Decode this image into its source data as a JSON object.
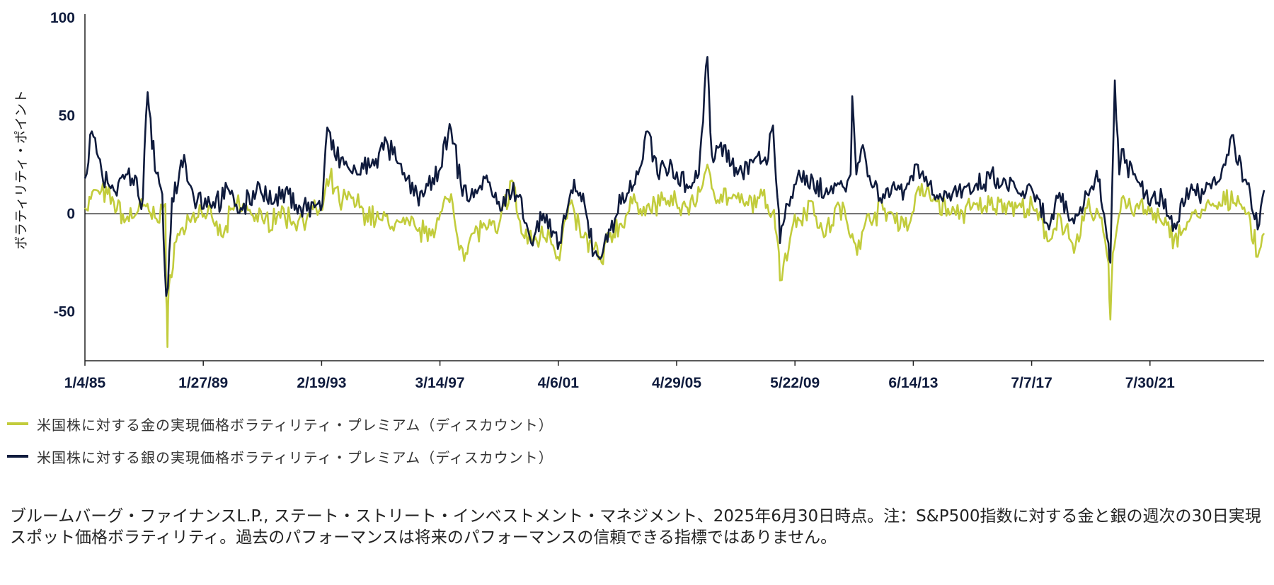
{
  "chart_data": {
    "type": "line",
    "ylabel": "ボラティリティ・ポイント",
    "ylim": [
      -75,
      100
    ],
    "yticks": [
      100,
      50,
      0,
      -50
    ],
    "xticks": [
      "1/4/85",
      "1/27/89",
      "2/19/93",
      "3/14/97",
      "4/6/01",
      "4/29/05",
      "5/22/09",
      "6/14/13",
      "7/7/17",
      "7/30/21"
    ],
    "xrange": [
      "1985-01-04",
      "2025-06-30"
    ],
    "series": [
      {
        "name": "米国株に対する金の実現価格ボラティリティ・プレミアム（ディスカウント）",
        "color": "#c2cc3c",
        "points": [
          [
            "1985-01-04",
            3
          ],
          [
            "1985-06-01",
            12
          ],
          [
            "1986-01-01",
            6
          ],
          [
            "1986-06-01",
            -3
          ],
          [
            "1987-01-01",
            4
          ],
          [
            "1987-06-01",
            -2
          ],
          [
            "1987-10-10",
            5
          ],
          [
            "1987-10-20",
            -42
          ],
          [
            "1987-11-05",
            -68
          ],
          [
            "1987-11-20",
            -38
          ],
          [
            "1988-02-01",
            -15
          ],
          [
            "1988-08-01",
            -3
          ],
          [
            "1989-01-01",
            2
          ],
          [
            "1989-06-01",
            -4
          ],
          [
            "1989-10-01",
            -12
          ],
          [
            "1990-03-01",
            5
          ],
          [
            "1990-09-01",
            2
          ],
          [
            "1991-03-01",
            -5
          ],
          [
            "1991-09-01",
            1
          ],
          [
            "1992-03-01",
            -4
          ],
          [
            "1992-09-01",
            0
          ],
          [
            "1993-03-01",
            2
          ],
          [
            "1993-06-01",
            18
          ],
          [
            "1993-10-01",
            6
          ],
          [
            "1994-03-01",
            8
          ],
          [
            "1994-09-01",
            0
          ],
          [
            "1995-03-01",
            -3
          ],
          [
            "1995-09-01",
            -5
          ],
          [
            "1996-03-01",
            -6
          ],
          [
            "1996-09-01",
            -10
          ],
          [
            "1997-03-01",
            -3
          ],
          [
            "1997-08-01",
            10
          ],
          [
            "1997-10-01",
            -8
          ],
          [
            "1998-02-01",
            -20
          ],
          [
            "1998-05-01",
            -10
          ],
          [
            "1998-10-01",
            -6
          ],
          [
            "1999-03-01",
            -10
          ],
          [
            "1999-09-01",
            17
          ],
          [
            "2000-01-01",
            -10
          ],
          [
            "2000-06-01",
            -14
          ],
          [
            "2000-12-01",
            -8
          ],
          [
            "2001-04-01",
            -22
          ],
          [
            "2001-09-01",
            5
          ],
          [
            "2002-02-01",
            -12
          ],
          [
            "2002-07-01",
            -18
          ],
          [
            "2002-10-01",
            -25
          ],
          [
            "2003-01-01",
            -12
          ],
          [
            "2003-06-01",
            -5
          ],
          [
            "2003-12-01",
            6
          ],
          [
            "2004-06-01",
            2
          ],
          [
            "2004-12-01",
            8
          ],
          [
            "2005-06-01",
            3
          ],
          [
            "2005-12-01",
            5
          ],
          [
            "2006-05-01",
            22
          ],
          [
            "2006-08-01",
            12
          ],
          [
            "2007-03-01",
            8
          ],
          [
            "2007-09-01",
            4
          ],
          [
            "2008-03-01",
            8
          ],
          [
            "2008-09-01",
            2
          ],
          [
            "2008-10-20",
            -15
          ],
          [
            "2008-11-15",
            -34
          ],
          [
            "2009-01-01",
            -25
          ],
          [
            "2009-05-01",
            -5
          ],
          [
            "2010-01-01",
            6
          ],
          [
            "2010-05-20",
            -12
          ],
          [
            "2010-12-01",
            4
          ],
          [
            "2011-08-20",
            -18
          ],
          [
            "2011-12-01",
            0
          ],
          [
            "2012-06-01",
            2
          ],
          [
            "2013-04-20",
            -6
          ],
          [
            "2013-08-01",
            12
          ],
          [
            "2014-03-01",
            8
          ],
          [
            "2014-10-01",
            0
          ],
          [
            "2015-06-01",
            2
          ],
          [
            "2015-12-01",
            4
          ],
          [
            "2016-06-01",
            6
          ],
          [
            "2017-01-01",
            3
          ],
          [
            "2017-08-01",
            2
          ],
          [
            "2018-02-10",
            -14
          ],
          [
            "2018-06-01",
            0
          ],
          [
            "2018-12-20",
            -20
          ],
          [
            "2019-06-01",
            3
          ],
          [
            "2019-12-01",
            -2
          ],
          [
            "2020-02-25",
            -25
          ],
          [
            "2020-03-20",
            -54
          ],
          [
            "2020-04-20",
            -20
          ],
          [
            "2020-08-10",
            8
          ],
          [
            "2020-12-01",
            3
          ],
          [
            "2021-06-01",
            2
          ],
          [
            "2022-01-01",
            -5
          ],
          [
            "2022-06-01",
            -12
          ],
          [
            "2022-12-01",
            -4
          ],
          [
            "2023-06-01",
            2
          ],
          [
            "2024-01-01",
            4
          ],
          [
            "2024-08-05",
            9
          ],
          [
            "2024-12-01",
            0
          ],
          [
            "2025-04-10",
            -22
          ],
          [
            "2025-06-30",
            -10
          ]
        ]
      },
      {
        "name": "米国株に対する銀の実現価格ボラティリティ・プレミアム（ディスカウント）",
        "color": "#0f1b3d",
        "points": [
          [
            "1985-01-04",
            18
          ],
          [
            "1985-04-01",
            42
          ],
          [
            "1985-08-01",
            22
          ],
          [
            "1986-01-01",
            12
          ],
          [
            "1986-06-01",
            20
          ],
          [
            "1987-01-01",
            8
          ],
          [
            "1987-03-01",
            62
          ],
          [
            "1987-06-01",
            22
          ],
          [
            "1987-09-01",
            10
          ],
          [
            "1987-10-20",
            -42
          ],
          [
            "1987-11-10",
            -38
          ],
          [
            "1988-01-01",
            8
          ],
          [
            "1988-06-01",
            30
          ],
          [
            "1988-10-01",
            8
          ],
          [
            "1989-06-01",
            6
          ],
          [
            "1990-01-01",
            10
          ],
          [
            "1990-06-01",
            2
          ],
          [
            "1991-01-01",
            15
          ],
          [
            "1991-06-01",
            5
          ],
          [
            "1992-01-01",
            10
          ],
          [
            "1992-06-01",
            3
          ],
          [
            "1993-03-01",
            5
          ],
          [
            "1993-05-01",
            44
          ],
          [
            "1993-08-01",
            30
          ],
          [
            "1993-12-01",
            25
          ],
          [
            "1994-06-01",
            20
          ],
          [
            "1995-01-01",
            28
          ],
          [
            "1995-06-01",
            35
          ],
          [
            "1995-12-01",
            20
          ],
          [
            "1996-06-01",
            10
          ],
          [
            "1997-01-01",
            15
          ],
          [
            "1997-08-01",
            43
          ],
          [
            "1997-12-01",
            15
          ],
          [
            "1998-04-01",
            8
          ],
          [
            "1998-10-01",
            18
          ],
          [
            "1999-03-01",
            5
          ],
          [
            "1999-09-01",
            10
          ],
          [
            "2000-01-01",
            8
          ],
          [
            "2000-05-01",
            -15
          ],
          [
            "2000-10-01",
            0
          ],
          [
            "2001-04-01",
            -18
          ],
          [
            "2001-09-15",
            12
          ],
          [
            "2002-03-01",
            5
          ],
          [
            "2002-07-01",
            -20
          ],
          [
            "2002-10-01",
            -22
          ],
          [
            "2003-01-01",
            -8
          ],
          [
            "2003-06-01",
            5
          ],
          [
            "2004-01-01",
            20
          ],
          [
            "2004-05-01",
            42
          ],
          [
            "2004-09-01",
            20
          ],
          [
            "2005-03-01",
            25
          ],
          [
            "2005-09-01",
            15
          ],
          [
            "2006-02-01",
            20
          ],
          [
            "2006-05-20",
            80
          ],
          [
            "2006-07-15",
            30
          ],
          [
            "2007-01-01",
            35
          ],
          [
            "2007-06-01",
            20
          ],
          [
            "2008-01-01",
            28
          ],
          [
            "2008-06-01",
            25
          ],
          [
            "2008-08-20",
            45
          ],
          [
            "2008-10-15",
            8
          ],
          [
            "2008-11-15",
            -15
          ],
          [
            "2009-02-01",
            5
          ],
          [
            "2009-06-01",
            15
          ],
          [
            "2010-01-01",
            18
          ],
          [
            "2010-06-01",
            10
          ],
          [
            "2010-12-01",
            15
          ],
          [
            "2011-04-20",
            20
          ],
          [
            "2011-05-10",
            60
          ],
          [
            "2011-07-01",
            20
          ],
          [
            "2011-09-20",
            35
          ],
          [
            "2012-01-01",
            15
          ],
          [
            "2012-06-01",
            10
          ],
          [
            "2013-04-20",
            15
          ],
          [
            "2013-07-01",
            25
          ],
          [
            "2014-01-01",
            15
          ],
          [
            "2014-06-01",
            8
          ],
          [
            "2015-01-01",
            12
          ],
          [
            "2015-06-01",
            10
          ],
          [
            "2016-02-01",
            18
          ],
          [
            "2016-07-01",
            15
          ],
          [
            "2017-01-01",
            12
          ],
          [
            "2017-08-01",
            10
          ],
          [
            "2018-02-10",
            -8
          ],
          [
            "2018-06-01",
            8
          ],
          [
            "2018-12-20",
            -5
          ],
          [
            "2019-06-01",
            10
          ],
          [
            "2019-10-01",
            22
          ],
          [
            "2020-02-25",
            -15
          ],
          [
            "2020-03-20",
            -25
          ],
          [
            "2020-05-15",
            68
          ],
          [
            "2020-07-10",
            20
          ],
          [
            "2020-08-10",
            33
          ],
          [
            "2021-01-01",
            20
          ],
          [
            "2021-06-01",
            10
          ],
          [
            "2022-01-01",
            8
          ],
          [
            "2022-06-01",
            -5
          ],
          [
            "2023-01-01",
            15
          ],
          [
            "2023-06-01",
            10
          ],
          [
            "2024-01-01",
            18
          ],
          [
            "2024-05-20",
            40
          ],
          [
            "2024-08-05",
            25
          ],
          [
            "2024-12-01",
            15
          ],
          [
            "2025-04-10",
            -8
          ],
          [
            "2025-06-30",
            12
          ]
        ]
      }
    ]
  },
  "note": "ブルームバーグ・ファイナンスL.P., ステート・ストリート・インベストメント・マネジメント、2025年6月30日時点。注：S&P500指数に対する金と銀の週次の30日実現スポット価格ボラティリティ。過去のパフォーマンスは将来のパフォーマンスの信頼できる指標ではありません。"
}
